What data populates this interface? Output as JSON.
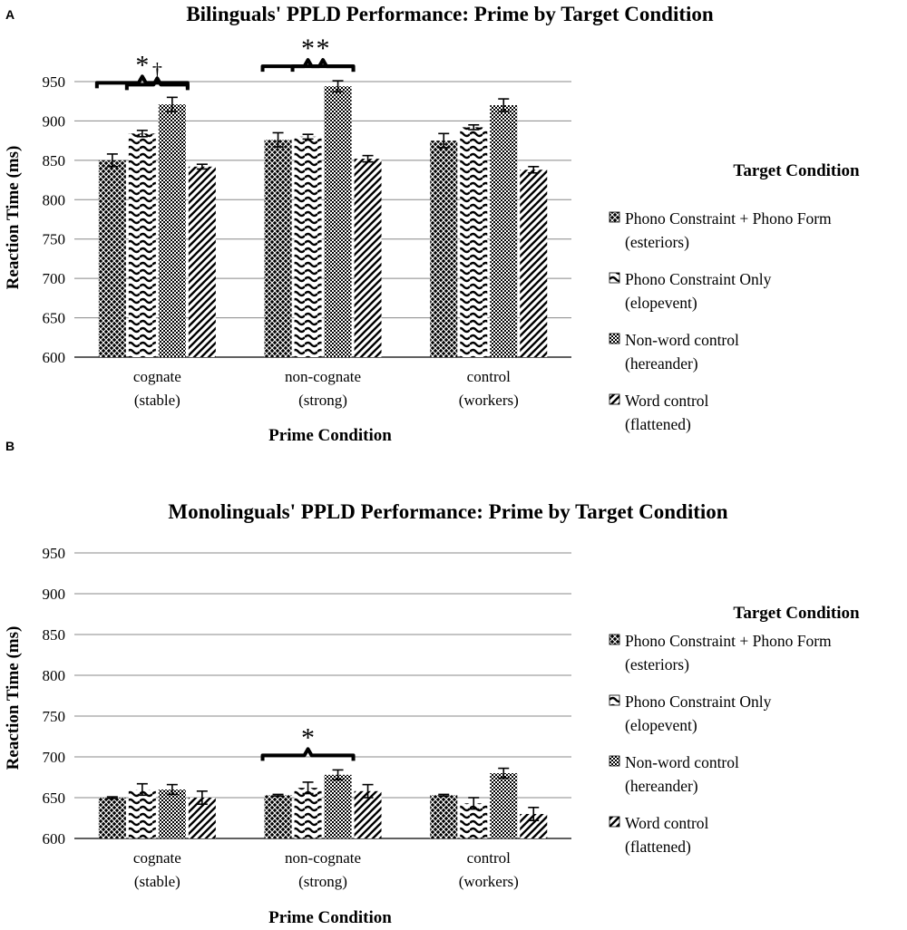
{
  "chart_data": [
    {
      "panel": "A",
      "type": "bar",
      "title": "Bilinguals' PPLD Performance: Prime by Target Condition",
      "xlabel": "Prime Condition",
      "ylabel": "Reaction Time (ms)",
      "ylim": [
        600,
        950
      ],
      "yticks": [
        600,
        650,
        700,
        750,
        800,
        850,
        900,
        950
      ],
      "grid": true,
      "legend_position": "right",
      "legend_title": "Target Condition",
      "categories": [
        [
          "cognate",
          "(stable)"
        ],
        [
          "non-cognate",
          "(strong)"
        ],
        [
          "control",
          "(workers)"
        ]
      ],
      "series": [
        {
          "name": [
            "Phono Constraint + Phono Form",
            "(esteriors)"
          ],
          "pattern": "crosshatch",
          "values": [
            850,
            876,
            875
          ],
          "errors": [
            8,
            9,
            9
          ]
        },
        {
          "name": [
            "Phono Constraint Only",
            "(elopevent)"
          ],
          "pattern": "wave",
          "values": [
            884,
            880,
            892
          ],
          "errors": [
            4,
            3,
            3
          ]
        },
        {
          "name": [
            "Non-word control",
            "(hereander)"
          ],
          "pattern": "checker",
          "values": [
            921,
            944,
            920
          ],
          "errors": [
            9,
            7,
            8
          ]
        },
        {
          "name": [
            "Word control",
            "(flattened)"
          ],
          "pattern": "diagonal",
          "values": [
            842,
            852,
            838
          ],
          "errors": [
            3,
            4,
            4
          ]
        }
      ],
      "annotations": [
        {
          "symbol": "*",
          "from": [
            0,
            0
          ],
          "to": [
            0,
            2
          ]
        },
        {
          "symbol": "†",
          "from": [
            0,
            1
          ],
          "to": [
            0,
            2
          ]
        },
        {
          "symbol": "*",
          "from": [
            1,
            0
          ],
          "to": [
            1,
            2
          ]
        },
        {
          "symbol": "*",
          "from": [
            1,
            1
          ],
          "to": [
            1,
            2
          ]
        }
      ]
    },
    {
      "panel": "B",
      "type": "bar",
      "title": "Monolinguals' PPLD Performance: Prime by Target Condition",
      "xlabel": "Prime Condition",
      "ylabel": "Reaction Time (ms)",
      "ylim": [
        600,
        950
      ],
      "yticks": [
        600,
        650,
        700,
        750,
        800,
        850,
        900,
        950
      ],
      "grid": true,
      "legend_position": "right",
      "legend_title": "Target Condition",
      "categories": [
        [
          "cognate",
          "(stable)"
        ],
        [
          "non-cognate",
          "(strong)"
        ],
        [
          "control",
          "(workers)"
        ]
      ],
      "series": [
        {
          "name": [
            "Phono Constraint + Phono Form",
            "(esteriors)"
          ],
          "pattern": "crosshatch",
          "values": [
            650,
            653,
            653
          ],
          "errors": [
            1,
            1,
            1
          ]
        },
        {
          "name": [
            "Phono Constraint Only",
            "(elopevent)"
          ],
          "pattern": "wave",
          "values": [
            660,
            662,
            643
          ],
          "errors": [
            7,
            7,
            7
          ]
        },
        {
          "name": [
            "Non-word control",
            "(hereander)"
          ],
          "pattern": "checker",
          "values": [
            660,
            678,
            680
          ],
          "errors": [
            6,
            6,
            6
          ]
        },
        {
          "name": [
            "Word control",
            "(flattened)"
          ],
          "pattern": "diagonal",
          "values": [
            650,
            658,
            630
          ],
          "errors": [
            8,
            8,
            8
          ]
        }
      ],
      "annotations": [
        {
          "symbol": "*",
          "from": [
            1,
            0
          ],
          "to": [
            1,
            2
          ]
        }
      ]
    }
  ]
}
